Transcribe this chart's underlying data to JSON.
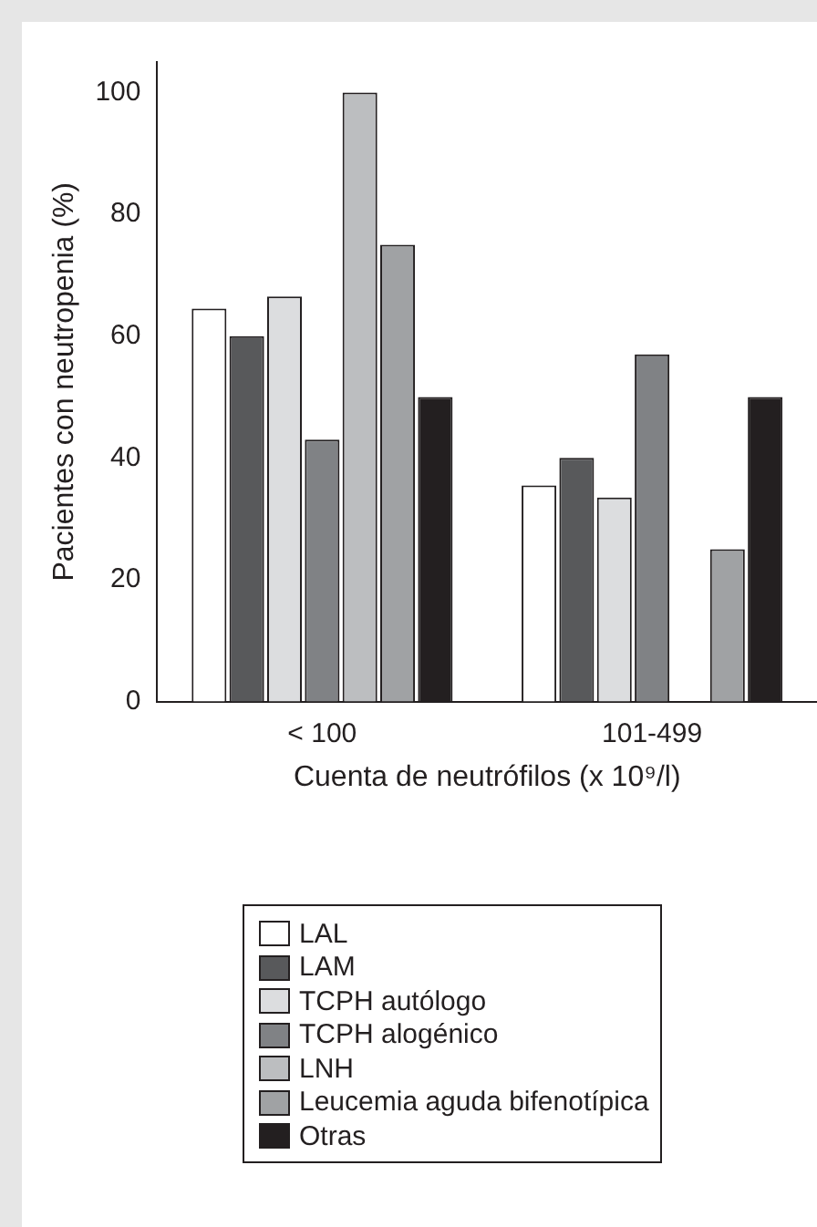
{
  "chart_data": {
    "type": "bar",
    "xlabel": "Cuenta de neutrófilos (x 10⁹/l)",
    "ylabel": "Pacientes con neutropenia (%)",
    "categories": [
      "< 100",
      "101-499"
    ],
    "series": [
      {
        "name": "LAL",
        "color": "#ffffff",
        "values": [
          64.5,
          35.5
        ]
      },
      {
        "name": "LAM",
        "color": "#58595b",
        "values": [
          60,
          40
        ]
      },
      {
        "name": "TCPH autólogo",
        "color": "#dcdddf",
        "values": [
          66.5,
          33.5
        ]
      },
      {
        "name": "TCPH alogénico",
        "color": "#808285",
        "values": [
          43,
          57
        ]
      },
      {
        "name": "LNH",
        "color": "#bcbec0",
        "values": [
          100,
          null
        ]
      },
      {
        "name": "Leucemia aguda bifenotípica",
        "color": "#a0a2a4",
        "values": [
          75,
          25
        ]
      },
      {
        "name": "Otras",
        "color": "#231f20",
        "values": [
          50,
          50
        ]
      }
    ],
    "ylim": [
      0,
      105
    ],
    "yticks": [
      0,
      20,
      40,
      60,
      80,
      100
    ],
    "grid": false,
    "legend": "bottom"
  }
}
